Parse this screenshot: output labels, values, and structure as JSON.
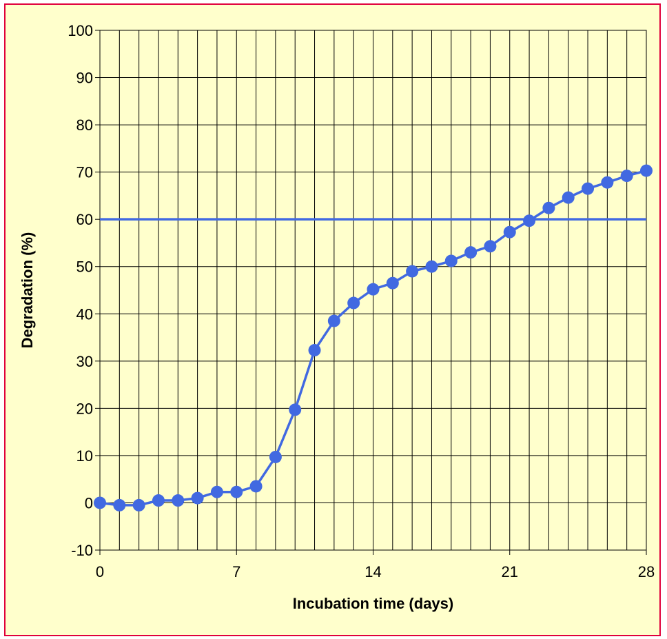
{
  "chart_data": {
    "type": "line",
    "xlabel": "Incubation time (days)",
    "ylabel": "Degradation (%)",
    "xlim": [
      0,
      28
    ],
    "ylim": [
      -10,
      100
    ],
    "x_ticks": [
      0,
      7,
      14,
      21,
      28
    ],
    "y_ticks": [
      -10,
      0,
      10,
      20,
      30,
      40,
      50,
      60,
      70,
      80,
      90,
      100
    ],
    "grid": true,
    "legend": "none",
    "colors": {
      "series": "#4169e1",
      "plot_background": "#ffffcc",
      "frame": "#e0003c",
      "grid": "#000000"
    },
    "reference_line": {
      "y": 60
    },
    "series": [
      {
        "x": [
          0,
          1,
          2,
          3,
          4,
          5,
          6,
          7,
          8,
          9,
          10,
          11,
          12,
          13,
          14,
          15,
          16,
          17,
          18,
          19,
          20,
          21,
          22,
          23,
          24,
          25,
          26,
          27,
          28
        ],
        "values": [
          0,
          -0.5,
          -0.5,
          0.5,
          0.5,
          1,
          2.3,
          2.3,
          3.5,
          9.7,
          19.7,
          32.3,
          38.5,
          42.3,
          45.2,
          46.5,
          49,
          50,
          51.2,
          53,
          54.3,
          57.3,
          59.7,
          62.4,
          64.6,
          66.5,
          67.8,
          69.2,
          70.3
        ]
      }
    ]
  }
}
